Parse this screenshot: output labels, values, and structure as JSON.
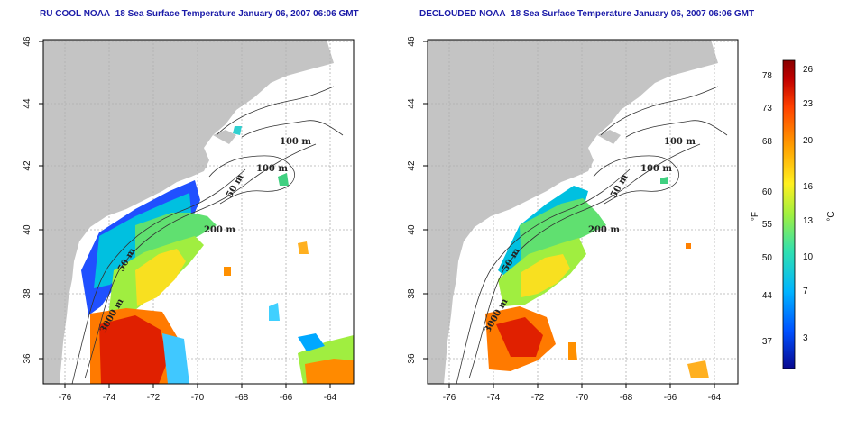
{
  "left_panel": {
    "title": "RU COOL NOAA–18 Sea Surface Temperature January 06, 2007 06:06 GMT",
    "contour_labels": [
      "100 m",
      "100 m",
      "50 m",
      "200 m",
      "50 m",
      "3000 m"
    ]
  },
  "right_panel": {
    "title": "DECLOUDED NOAA–18 Sea Surface Temperature January 06, 2007 06:06 GMT",
    "contour_labels": [
      "100 m",
      "100 m",
      "50 m",
      "200 m",
      "50 m",
      "3000 m"
    ]
  },
  "axes": {
    "x_ticks": [
      "-76",
      "-74",
      "-72",
      "-70",
      "-68",
      "-66",
      "-64"
    ],
    "y_ticks": [
      "36",
      "38",
      "40",
      "42",
      "44",
      "46"
    ]
  },
  "colorbar": {
    "fahrenheit_label": "°F",
    "celsius_label": "°C",
    "fahrenheit_ticks": [
      "78",
      "73",
      "68",
      "60",
      "55",
      "50",
      "44",
      "37"
    ],
    "celsius_ticks": [
      "26",
      "23",
      "20",
      "16",
      "13",
      "10",
      "7",
      "3"
    ],
    "colors": [
      "#08088f",
      "#0050ff",
      "#00b4ff",
      "#30e0b0",
      "#a0f040",
      "#fff020",
      "#ffa000",
      "#ff4000",
      "#c00000",
      "#880000"
    ]
  },
  "colors": {
    "land": "#c4c4c4",
    "ocean": "#ffffff",
    "grid": "#b0b0b0",
    "title": "#1a1aa8"
  }
}
